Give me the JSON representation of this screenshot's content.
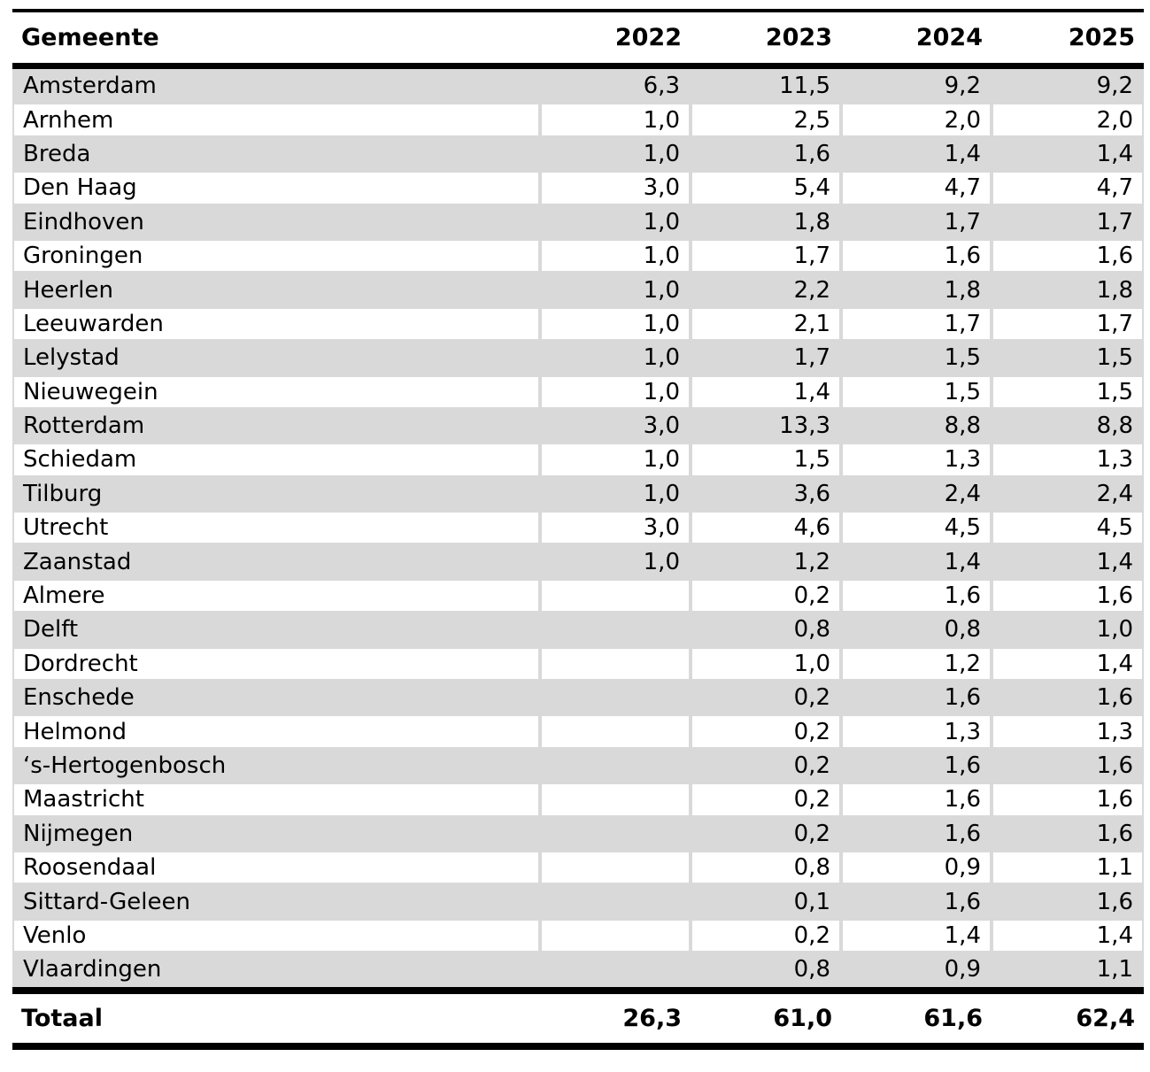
{
  "table": {
    "columns": [
      "Gemeente",
      "2022",
      "2023",
      "2024",
      "2025"
    ],
    "rows": [
      {
        "gemeente": "Amsterdam",
        "values": [
          "6,3",
          "11,5",
          "9,2",
          "9,2"
        ]
      },
      {
        "gemeente": "Arnhem",
        "values": [
          "1,0",
          "2,5",
          "2,0",
          "2,0"
        ]
      },
      {
        "gemeente": "Breda",
        "values": [
          "1,0",
          "1,6",
          "1,4",
          "1,4"
        ]
      },
      {
        "gemeente": "Den Haag",
        "values": [
          "3,0",
          "5,4",
          "4,7",
          "4,7"
        ]
      },
      {
        "gemeente": "Eindhoven",
        "values": [
          "1,0",
          "1,8",
          "1,7",
          "1,7"
        ]
      },
      {
        "gemeente": "Groningen",
        "values": [
          "1,0",
          "1,7",
          "1,6",
          "1,6"
        ]
      },
      {
        "gemeente": "Heerlen",
        "values": [
          "1,0",
          "2,2",
          "1,8",
          "1,8"
        ]
      },
      {
        "gemeente": "Leeuwarden",
        "values": [
          "1,0",
          "2,1",
          "1,7",
          "1,7"
        ]
      },
      {
        "gemeente": "Lelystad",
        "values": [
          "1,0",
          "1,7",
          "1,5",
          "1,5"
        ]
      },
      {
        "gemeente": "Nieuwegein",
        "values": [
          "1,0",
          "1,4",
          "1,5",
          "1,5"
        ]
      },
      {
        "gemeente": "Rotterdam",
        "values": [
          "3,0",
          "13,3",
          "8,8",
          "8,8"
        ]
      },
      {
        "gemeente": "Schiedam",
        "values": [
          "1,0",
          "1,5",
          "1,3",
          "1,3"
        ]
      },
      {
        "gemeente": "Tilburg",
        "values": [
          "1,0",
          "3,6",
          "2,4",
          "2,4"
        ]
      },
      {
        "gemeente": "Utrecht",
        "values": [
          "3,0",
          "4,6",
          "4,5",
          "4,5"
        ]
      },
      {
        "gemeente": "Zaanstad",
        "values": [
          "1,0",
          "1,2",
          "1,4",
          "1,4"
        ]
      },
      {
        "gemeente": "Almere",
        "values": [
          "",
          "0,2",
          "1,6",
          "1,6"
        ]
      },
      {
        "gemeente": "Delft",
        "values": [
          "",
          "0,8",
          "0,8",
          "1,0"
        ]
      },
      {
        "gemeente": "Dordrecht",
        "values": [
          "",
          "1,0",
          "1,2",
          "1,4"
        ]
      },
      {
        "gemeente": "Enschede",
        "values": [
          "",
          "0,2",
          "1,6",
          "1,6"
        ]
      },
      {
        "gemeente": "Helmond",
        "values": [
          "",
          "0,2",
          "1,3",
          "1,3"
        ]
      },
      {
        "gemeente": "‘s-Hertogenbosch",
        "values": [
          "",
          "0,2",
          "1,6",
          "1,6"
        ]
      },
      {
        "gemeente": "Maastricht",
        "values": [
          "",
          "0,2",
          "1,6",
          "1,6"
        ]
      },
      {
        "gemeente": "Nijmegen",
        "values": [
          "",
          "0,2",
          "1,6",
          "1,6"
        ]
      },
      {
        "gemeente": "Roosendaal",
        "values": [
          "",
          "0,8",
          "0,9",
          "1,1"
        ]
      },
      {
        "gemeente": "Sittard-Geleen",
        "values": [
          "",
          "0,1",
          "1,6",
          "1,6"
        ]
      },
      {
        "gemeente": "Venlo",
        "values": [
          "",
          "0,2",
          "1,4",
          "1,4"
        ]
      },
      {
        "gemeente": "Vlaardingen",
        "values": [
          "",
          "0,8",
          "0,9",
          "1,1"
        ]
      }
    ],
    "total": {
      "label": "Totaal",
      "values": [
        "26,3",
        "61,0",
        "61,6",
        "62,4"
      ]
    }
  },
  "colors": {
    "row_shade": "#d9d9d9",
    "grid_line": "#d9d9d9",
    "rule": "#000000",
    "background": "#ffffff",
    "text": "#000000"
  },
  "chart_data": {
    "type": "table",
    "title": "",
    "columns": [
      "Gemeente",
      "2022",
      "2023",
      "2024",
      "2025"
    ],
    "decimal_separator": ",",
    "rows": [
      [
        "Amsterdam",
        6.3,
        11.5,
        9.2,
        9.2
      ],
      [
        "Arnhem",
        1.0,
        2.5,
        2.0,
        2.0
      ],
      [
        "Breda",
        1.0,
        1.6,
        1.4,
        1.4
      ],
      [
        "Den Haag",
        3.0,
        5.4,
        4.7,
        4.7
      ],
      [
        "Eindhoven",
        1.0,
        1.8,
        1.7,
        1.7
      ],
      [
        "Groningen",
        1.0,
        1.7,
        1.6,
        1.6
      ],
      [
        "Heerlen",
        1.0,
        2.2,
        1.8,
        1.8
      ],
      [
        "Leeuwarden",
        1.0,
        2.1,
        1.7,
        1.7
      ],
      [
        "Lelystad",
        1.0,
        1.7,
        1.5,
        1.5
      ],
      [
        "Nieuwegein",
        1.0,
        1.4,
        1.5,
        1.5
      ],
      [
        "Rotterdam",
        3.0,
        13.3,
        8.8,
        8.8
      ],
      [
        "Schiedam",
        1.0,
        1.5,
        1.3,
        1.3
      ],
      [
        "Tilburg",
        1.0,
        3.6,
        2.4,
        2.4
      ],
      [
        "Utrecht",
        3.0,
        4.6,
        4.5,
        4.5
      ],
      [
        "Zaanstad",
        1.0,
        1.2,
        1.4,
        1.4
      ],
      [
        "Almere",
        null,
        0.2,
        1.6,
        1.6
      ],
      [
        "Delft",
        null,
        0.8,
        0.8,
        1.0
      ],
      [
        "Dordrecht",
        null,
        1.0,
        1.2,
        1.4
      ],
      [
        "Enschede",
        null,
        0.2,
        1.6,
        1.6
      ],
      [
        "Helmond",
        null,
        0.2,
        1.3,
        1.3
      ],
      [
        "‘s-Hertogenbosch",
        null,
        0.2,
        1.6,
        1.6
      ],
      [
        "Maastricht",
        null,
        0.2,
        1.6,
        1.6
      ],
      [
        "Nijmegen",
        null,
        0.2,
        1.6,
        1.6
      ],
      [
        "Roosendaal",
        null,
        0.8,
        0.9,
        1.1
      ],
      [
        "Sittard-Geleen",
        null,
        0.1,
        1.6,
        1.6
      ],
      [
        "Venlo",
        null,
        0.2,
        1.4,
        1.4
      ],
      [
        "Vlaardingen",
        null,
        0.8,
        0.9,
        1.1
      ]
    ],
    "total_row": [
      "Totaal",
      26.3,
      61.0,
      61.6,
      62.4
    ]
  }
}
